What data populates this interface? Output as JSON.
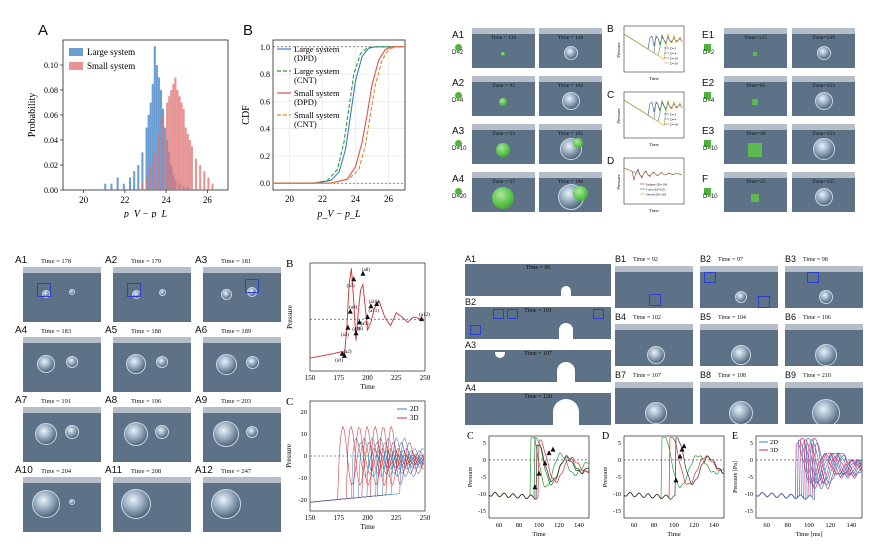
{
  "panel_labels": {
    "top_left_A": "A",
    "top_left_B": "B",
    "bottom_left_B": "B",
    "bottom_left_C": "C",
    "bottom_right_C": "C",
    "bottom_right_D": "D",
    "bottom_right_E": "E"
  },
  "chart_data": [
    {
      "id": "hist",
      "type": "bar",
      "xlabel": "p_V − p_L",
      "ylabel": "Probability",
      "xlim": [
        19,
        27
      ],
      "ylim": [
        0,
        0.12
      ],
      "xticks": [
        20,
        22,
        24,
        26
      ],
      "yticks": [
        0.0,
        0.02,
        0.04,
        0.06,
        0.08,
        0.1
      ],
      "legend": "top-left",
      "series": [
        {
          "name": "Large system",
          "color": "#3a7fc4",
          "bin_width": 0.1,
          "x": [
            21.0,
            21.3,
            21.6,
            21.9,
            22.2,
            22.4,
            22.6,
            22.8,
            23.0,
            23.1,
            23.2,
            23.3,
            23.4,
            23.5,
            23.6,
            23.7,
            23.8,
            23.9,
            24.0,
            24.1,
            24.2,
            24.3,
            24.4,
            24.6,
            24.8,
            25.0
          ],
          "values": [
            0.005,
            0.005,
            0.01,
            0.005,
            0.01,
            0.015,
            0.02,
            0.03,
            0.05,
            0.06,
            0.07,
            0.085,
            0.115,
            0.1,
            0.09,
            0.08,
            0.065,
            0.05,
            0.04,
            0.03,
            0.02,
            0.012,
            0.008,
            0.005,
            0.003,
            0.002
          ]
        },
        {
          "name": "Small system",
          "color": "#e07070",
          "bin_width": 0.1,
          "x": [
            22.8,
            23.0,
            23.2,
            23.4,
            23.6,
            23.8,
            24.0,
            24.1,
            24.2,
            24.3,
            24.4,
            24.5,
            24.6,
            24.7,
            24.8,
            24.9,
            25.0,
            25.1,
            25.2,
            25.4,
            25.6,
            25.8,
            26.0,
            26.2
          ],
          "values": [
            0.005,
            0.01,
            0.02,
            0.03,
            0.045,
            0.06,
            0.07,
            0.075,
            0.08,
            0.085,
            0.09,
            0.08,
            0.075,
            0.07,
            0.065,
            0.05,
            0.045,
            0.04,
            0.035,
            0.025,
            0.02,
            0.015,
            0.01,
            0.005
          ]
        }
      ]
    },
    {
      "id": "cdf",
      "type": "line",
      "xlabel": "p_V − p_L",
      "ylabel": "CDF",
      "xlim": [
        19,
        27
      ],
      "ylim": [
        -0.05,
        1.05
      ],
      "xticks": [
        20,
        22,
        24,
        26
      ],
      "yticks": [
        0.0,
        0.2,
        0.4,
        0.6,
        0.8,
        1.0
      ],
      "legend": "top-left",
      "series": [
        {
          "name": "Large system (DPD)",
          "color": "#3a7fc4",
          "dash": "none",
          "x": [
            21.5,
            22.5,
            23.0,
            23.4,
            23.7,
            24.0,
            24.4,
            24.8,
            25.2
          ],
          "values": [
            0,
            0.02,
            0.08,
            0.25,
            0.5,
            0.75,
            0.93,
            0.99,
            1.0
          ]
        },
        {
          "name": "Large system (CNT)",
          "color": "#2f9a3a",
          "dash": "4,2",
          "x": [
            21.5,
            22.3,
            22.9,
            23.3,
            23.6,
            23.9,
            24.3,
            24.7,
            25.1
          ],
          "values": [
            0,
            0.02,
            0.1,
            0.3,
            0.55,
            0.8,
            0.95,
            0.99,
            1.0
          ]
        },
        {
          "name": "Small system (DPD)",
          "color": "#e05050",
          "dash": "none",
          "x": [
            22.5,
            23.5,
            24.0,
            24.4,
            24.7,
            25.0,
            25.4,
            25.8,
            26.2
          ],
          "values": [
            0,
            0.03,
            0.12,
            0.3,
            0.5,
            0.72,
            0.9,
            0.98,
            1.0
          ]
        },
        {
          "name": "Small system (CNT)",
          "color": "#e08a2a",
          "dash": "4,2",
          "x": [
            22.5,
            23.6,
            24.2,
            24.6,
            24.9,
            25.2,
            25.6,
            26.0,
            26.4
          ],
          "values": [
            0,
            0.03,
            0.1,
            0.28,
            0.5,
            0.72,
            0.9,
            0.98,
            1.0
          ]
        }
      ]
    }
  ],
  "top_right": {
    "rows": [
      {
        "label": "A1",
        "sub": "D=2",
        "t1": "Time = 130",
        "t2": "Time = 148"
      },
      {
        "label": "A2",
        "sub": "D=4",
        "t1": "Time = 92",
        "t2": "Time = 162"
      },
      {
        "label": "A3",
        "sub": "D=10",
        "t1": "Time = 63",
        "t2": "Time = 165"
      },
      {
        "label": "A4",
        "sub": "D=20",
        "t1": "Time = 67",
        "t2": "Time = 180"
      }
    ],
    "right_rows": [
      {
        "label": "E1",
        "sub": "D=2",
        "t1": "Time=125",
        "t2": "Time=149"
      },
      {
        "label": "E2",
        "sub": "D=4",
        "t1": "Time=65",
        "t2": "Time=153"
      },
      {
        "label": "E3",
        "sub": "D=10",
        "t1": "Time=49",
        "t2": "Time=153"
      },
      {
        "label": "F",
        "sub": "D=10",
        "t1": "Time=25",
        "t2": "Time=135"
      }
    ],
    "mini_labels": [
      "B",
      "C",
      "D"
    ],
    "mini_legend_B": [
      "D=2",
      "D=4",
      "D=10",
      "D=20"
    ],
    "mini_legend_C": [
      "D=2",
      "D=4",
      "D=10"
    ],
    "mini_legend_D": [
      "Sphere (D=10)",
      "Cube (D=10)",
      "Ovoid (D=10)"
    ],
    "mini_axis_x": "Time",
    "mini_axis_y": "Pressure"
  },
  "bottom_left": {
    "tiles": [
      {
        "label": "A1",
        "time": "Time = 178"
      },
      {
        "label": "A2",
        "time": "Time = 179"
      },
      {
        "label": "A3",
        "time": "Time = 181"
      },
      {
        "label": "A4",
        "time": "Time = 183"
      },
      {
        "label": "A5",
        "time": "Time = 188"
      },
      {
        "label": "A6",
        "time": "Time = 189"
      },
      {
        "label": "A7",
        "time": "Time = 191"
      },
      {
        "label": "A8",
        "time": "Time = 196"
      },
      {
        "label": "A9",
        "time": "Time = 203"
      },
      {
        "label": "A10",
        "time": "Time = 204"
      },
      {
        "label": "A11",
        "time": "Time = 208"
      },
      {
        "label": "A12",
        "time": "Time = 247"
      }
    ],
    "chartB": {
      "xlabel": "Time",
      "ylabel": "Pressure",
      "xticks": [
        150,
        175,
        200,
        225,
        250
      ],
      "points": [
        "(a1)",
        "(a2)",
        "(a3)",
        "(a4)",
        "(a5)",
        "(a6)",
        "(a7)",
        "(a8)",
        "(a9)",
        "(a10)",
        "(a11)",
        "(a12)"
      ]
    },
    "chartC": {
      "xlabel": "Time",
      "ylabel": "Pressure",
      "xticks": [
        150,
        175,
        200,
        225,
        250
      ],
      "yticks": [
        -20,
        -10,
        0,
        10,
        20
      ],
      "legend": [
        "2D",
        "3D"
      ]
    }
  },
  "bottom_right": {
    "left_rows": [
      {
        "label": "A1",
        "time": "Time = 96"
      },
      {
        "label": "B2",
        "time": "Time = 101"
      },
      {
        "label": "A3",
        "time": "Time = 107"
      },
      {
        "label": "A4",
        "time": "Time = 120"
      }
    ],
    "grid": [
      {
        "label": "B1",
        "time": "Time = 92"
      },
      {
        "label": "B2",
        "time": "Time = 97"
      },
      {
        "label": "B3",
        "time": "Time = 98"
      },
      {
        "label": "B4",
        "time": "Time = 102"
      },
      {
        "label": "B5",
        "time": "Time = 104"
      },
      {
        "label": "B6",
        "time": "Time = 106"
      },
      {
        "label": "B7",
        "time": "Time = 107"
      },
      {
        "label": "B8",
        "time": "Time = 108"
      },
      {
        "label": "B9",
        "time": "Time = 210"
      }
    ],
    "chartC": {
      "xlabel": "Time",
      "ylabel": "Pressure",
      "xticks": [
        60,
        80,
        100,
        120,
        140
      ],
      "yticks": [
        -15,
        -10,
        -5,
        0,
        5
      ]
    },
    "chartD": {
      "xlabel": "Time",
      "ylabel": "Pressure",
      "xticks": [
        60,
        80,
        100,
        120,
        140
      ],
      "yticks": [
        -15,
        -10,
        -5,
        0,
        5
      ]
    },
    "chartE": {
      "xlabel": "Time [ms]",
      "ylabel": "Pressure [Pa]",
      "xticks": [
        60,
        80,
        100,
        120,
        140
      ],
      "yticks": [
        -15,
        -10,
        -5,
        0,
        5
      ],
      "legend": [
        "2D",
        "3D"
      ]
    }
  }
}
